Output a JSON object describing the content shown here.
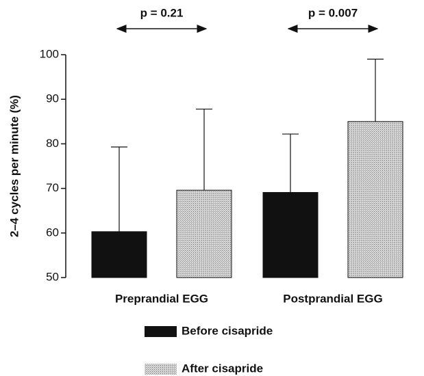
{
  "chart_data": {
    "type": "bar",
    "y_label": "2–4 cycles per minute (%)",
    "categories": [
      "Preprandial EGG",
      "Postprandial EGG"
    ],
    "series": [
      {
        "name": "Before cisapride",
        "color": "#111111",
        "values": [
          60.3,
          69.1
        ],
        "errors": [
          19.0,
          13.1
        ]
      },
      {
        "name": "After cisapride",
        "color": "#b5b5b5",
        "values": [
          69.6,
          85.0
        ],
        "errors": [
          18.2,
          14.0
        ]
      }
    ],
    "annotations": [
      "p = 0.21",
      "p = 0.007"
    ],
    "ylim": [
      50,
      100
    ],
    "yticks": [
      50,
      60,
      70,
      80,
      90,
      100
    ],
    "grid": false
  }
}
